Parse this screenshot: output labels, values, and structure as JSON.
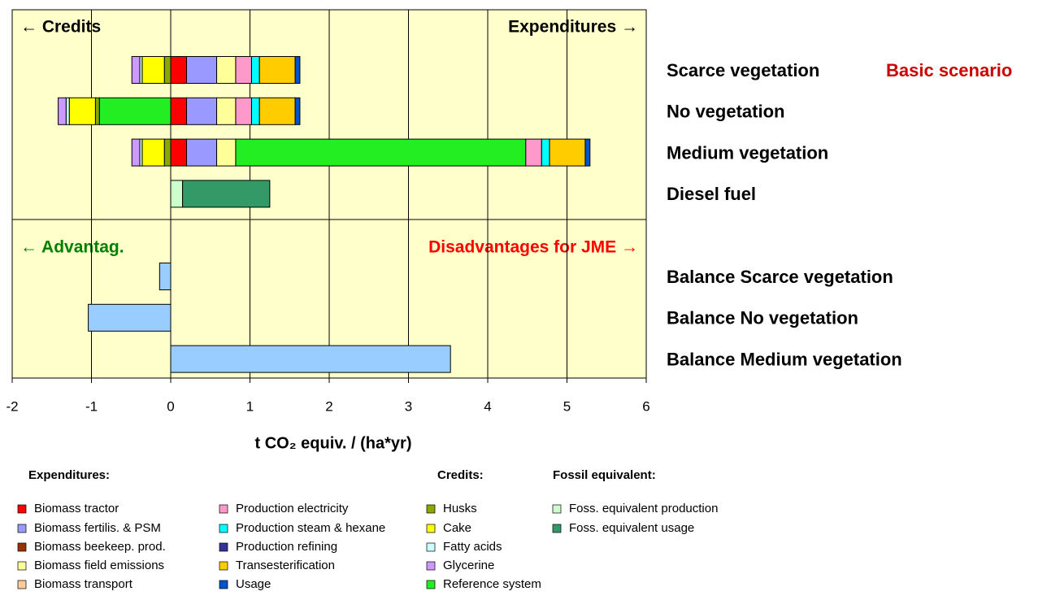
{
  "chart_data": {
    "type": "bar",
    "orientation": "horizontal",
    "stacked": true,
    "xlabel": "t CO₂ equiv. / (ha*yr)",
    "categories": [
      "Scarce vegetation",
      "No vegetation",
      "Medium vegetation",
      "Diesel fuel",
      "Balance Scarce vegetation",
      "Balance No vegetation",
      "Balance Medium vegetation"
    ],
    "annotations": {
      "scenario": "Basic scenario",
      "credits": "← Credits",
      "expenditures": "Expenditures →",
      "advantages": "← Advantag.",
      "disadvantages": "Disadvantages for JME →"
    },
    "legend_headings": {
      "expenditures": "Expenditures:",
      "credits": "Credits:",
      "fossil": "Fossil equivalent:"
    },
    "xlim": [
      -2,
      6
    ],
    "xticks": [
      -2,
      -1,
      0,
      1,
      2,
      3,
      4,
      5,
      6
    ],
    "grid": true,
    "background": "#ffffcc",
    "series": [
      {
        "name": "Biomass tractor",
        "color": "#ff0000",
        "values": [
          0.2,
          0.2,
          0.2,
          null,
          null,
          null,
          null
        ]
      },
      {
        "name": "Biomass fertilis. & PSM",
        "color": "#9999ff",
        "values": [
          0.38,
          0.38,
          0.38,
          null,
          null,
          null,
          null
        ]
      },
      {
        "name": "Biomass beekeep. prod.",
        "color": "#993300",
        "values": [
          null,
          null,
          null,
          null,
          null,
          null,
          null
        ]
      },
      {
        "name": "Biomass field emissions",
        "color": "#ffff99",
        "values": [
          0.24,
          0.24,
          0.24,
          null,
          null,
          null,
          null
        ]
      },
      {
        "name": "Biomass transport",
        "color": "#ffcc99",
        "values": [
          null,
          null,
          null,
          null,
          null,
          null,
          null
        ]
      },
      {
        "name": "Reference system",
        "color": "#22ee22",
        "values": [
          null,
          -0.9,
          3.66,
          null,
          null,
          null,
          null
        ]
      },
      {
        "name": "Production electricity",
        "color": "#ff99cc",
        "values": [
          0.2,
          0.2,
          0.2,
          null,
          null,
          null,
          null
        ]
      },
      {
        "name": "Production steam & hexane",
        "color": "#00ffff",
        "values": [
          0.1,
          0.1,
          0.1,
          null,
          null,
          null,
          null
        ]
      },
      {
        "name": "Production refining",
        "color": "#333399",
        "values": [
          null,
          null,
          null,
          null,
          null,
          null,
          null
        ]
      },
      {
        "name": "Transesterification",
        "color": "#ffcc00",
        "values": [
          0.45,
          0.45,
          0.45,
          null,
          null,
          null,
          null
        ]
      },
      {
        "name": "Usage",
        "color": "#0055cc",
        "values": [
          0.06,
          0.06,
          0.06,
          null,
          null,
          null,
          null
        ]
      },
      {
        "name": "Husks",
        "color": "#88aa00",
        "values": [
          -0.08,
          -0.05,
          -0.08,
          null,
          null,
          null,
          null
        ]
      },
      {
        "name": "Cake",
        "color": "#ffff00",
        "values": [
          -0.28,
          -0.33,
          -0.28,
          null,
          null,
          null,
          null
        ]
      },
      {
        "name": "Fatty acids",
        "color": "#ccffff",
        "values": [
          -0.03,
          -0.04,
          -0.03,
          null,
          null,
          null,
          null
        ]
      },
      {
        "name": "Glycerine",
        "color": "#cc99ff",
        "values": [
          -0.1,
          -0.1,
          -0.1,
          null,
          null,
          null,
          null
        ]
      },
      {
        "name": "Foss. equivalent production",
        "color": "#ccffcc",
        "values": [
          null,
          null,
          null,
          0.15,
          null,
          null,
          null
        ]
      },
      {
        "name": "Foss. equivalent usage",
        "color": "#339966",
        "values": [
          null,
          null,
          null,
          1.1,
          null,
          null,
          null
        ]
      },
      {
        "color": "#99ccff",
        "values": [
          null,
          null,
          null,
          null,
          -0.14,
          -1.04,
          3.53
        ]
      }
    ]
  }
}
